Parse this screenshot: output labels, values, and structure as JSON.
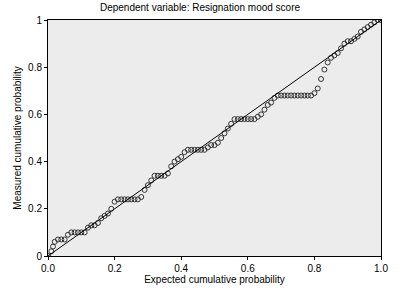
{
  "chart_data": {
    "type": "scatter",
    "title": "Dependent variable: Resignation mood score",
    "x_label": "Expected cumulative probability",
    "y_label": "Measured cumulative probability",
    "xlim": [
      0,
      1
    ],
    "ylim": [
      0,
      1
    ],
    "xticks": [
      {
        "value": 0,
        "label": "0.0"
      },
      0.2,
      0.4,
      0.6,
      0.8,
      {
        "value": 1,
        "label": "1.0"
      }
    ],
    "yticks": [
      0,
      0.2,
      0.4,
      0.6,
      0.8,
      1
    ],
    "grid": false,
    "series": [
      {
        "type": "scatter",
        "marker": "circle-open",
        "color": "#333333",
        "x": [
          0.0,
          0.01,
          0.015,
          0.02,
          0.03,
          0.04,
          0.05,
          0.06,
          0.07,
          0.08,
          0.09,
          0.1,
          0.11,
          0.12,
          0.13,
          0.14,
          0.15,
          0.16,
          0.17,
          0.18,
          0.19,
          0.2,
          0.21,
          0.22,
          0.23,
          0.24,
          0.25,
          0.26,
          0.27,
          0.28,
          0.29,
          0.3,
          0.31,
          0.32,
          0.33,
          0.34,
          0.35,
          0.36,
          0.37,
          0.38,
          0.39,
          0.4,
          0.41,
          0.42,
          0.43,
          0.44,
          0.45,
          0.46,
          0.47,
          0.48,
          0.49,
          0.5,
          0.51,
          0.52,
          0.53,
          0.54,
          0.55,
          0.56,
          0.57,
          0.58,
          0.59,
          0.6,
          0.61,
          0.62,
          0.63,
          0.64,
          0.65,
          0.66,
          0.67,
          0.68,
          0.69,
          0.7,
          0.71,
          0.72,
          0.73,
          0.74,
          0.75,
          0.76,
          0.77,
          0.78,
          0.79,
          0.8,
          0.81,
          0.82,
          0.83,
          0.84,
          0.85,
          0.86,
          0.87,
          0.88,
          0.89,
          0.9,
          0.91,
          0.92,
          0.93,
          0.94,
          0.95,
          0.96,
          0.97,
          0.98,
          0.99,
          1.0
        ],
        "values": [
          0.0,
          0.02,
          0.04,
          0.06,
          0.07,
          0.07,
          0.07,
          0.09,
          0.1,
          0.1,
          0.1,
          0.1,
          0.1,
          0.12,
          0.13,
          0.13,
          0.14,
          0.16,
          0.17,
          0.18,
          0.2,
          0.23,
          0.24,
          0.24,
          0.24,
          0.24,
          0.24,
          0.24,
          0.24,
          0.25,
          0.28,
          0.3,
          0.32,
          0.34,
          0.34,
          0.34,
          0.34,
          0.35,
          0.38,
          0.4,
          0.41,
          0.42,
          0.44,
          0.45,
          0.45,
          0.45,
          0.45,
          0.45,
          0.45,
          0.46,
          0.47,
          0.47,
          0.48,
          0.5,
          0.52,
          0.54,
          0.56,
          0.58,
          0.58,
          0.58,
          0.58,
          0.58,
          0.58,
          0.58,
          0.59,
          0.6,
          0.62,
          0.64,
          0.65,
          0.67,
          0.68,
          0.68,
          0.68,
          0.68,
          0.68,
          0.68,
          0.68,
          0.68,
          0.68,
          0.68,
          0.68,
          0.69,
          0.71,
          0.75,
          0.79,
          0.82,
          0.84,
          0.85,
          0.86,
          0.88,
          0.9,
          0.91,
          0.91,
          0.92,
          0.93,
          0.95,
          0.96,
          0.97,
          0.98,
          0.99,
          1.0,
          1.0
        ]
      },
      {
        "type": "line",
        "line_style": "solid",
        "color": "#000000",
        "x": [
          0,
          1
        ],
        "values": [
          0,
          1
        ]
      }
    ]
  }
}
